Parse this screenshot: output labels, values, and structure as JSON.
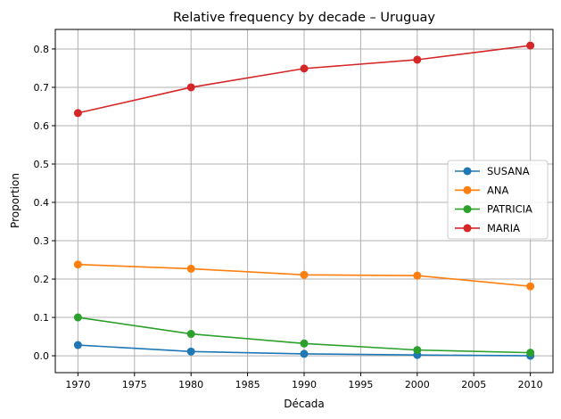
{
  "chart_data": {
    "type": "line",
    "title": "Relative frequency by decade – Uruguay",
    "xlabel": "Década",
    "ylabel": "Proportion",
    "x": [
      1970,
      1980,
      1990,
      2000,
      2010
    ],
    "xlim": [
      1968,
      2012
    ],
    "ylim": [
      -0.044,
      0.851
    ],
    "xticks": [
      1970,
      1975,
      1980,
      1985,
      1990,
      1995,
      2000,
      2005,
      2010
    ],
    "yticks": [
      0.0,
      0.1,
      0.2,
      0.3,
      0.4,
      0.5,
      0.6,
      0.7,
      0.8
    ],
    "grid": true,
    "legend_position": "center-right",
    "series": [
      {
        "name": "SUSANA",
        "color": "#1f77b4",
        "values": [
          0.028,
          0.011,
          0.005,
          0.002,
          0.0
        ]
      },
      {
        "name": "ANA",
        "color": "#ff7f0e",
        "values": [
          0.238,
          0.227,
          0.211,
          0.209,
          0.181
        ]
      },
      {
        "name": "PATRICIA",
        "color": "#2ca02c",
        "values": [
          0.1,
          0.057,
          0.032,
          0.015,
          0.008
        ]
      },
      {
        "name": "MARIA",
        "color": "#d62728",
        "values": [
          0.633,
          0.7,
          0.749,
          0.772,
          0.809
        ]
      }
    ]
  }
}
